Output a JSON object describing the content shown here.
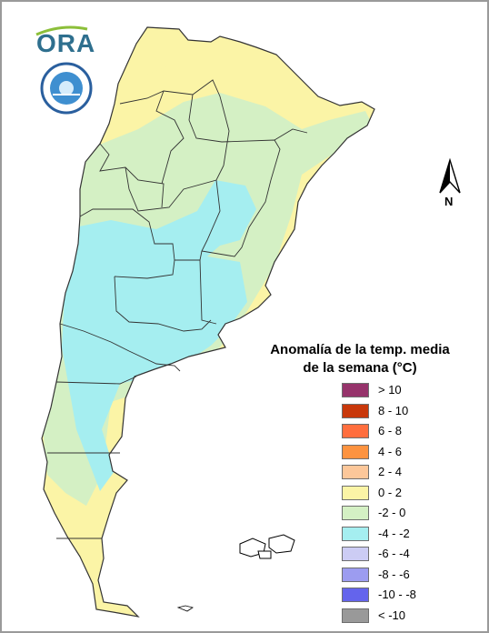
{
  "logo": {
    "brand_text": "ORA"
  },
  "map": {
    "colors": {
      "warm": "#fbf4a6",
      "mild": "#d4f0c4",
      "cool": "#a5eef0",
      "border": "#333333"
    }
  },
  "compass": {
    "north_label": "N"
  },
  "legend": {
    "title_line1": "Anomalía de la temp. media",
    "title_line2": "de la semana (°C)",
    "items": [
      {
        "label": "> 10",
        "color": "#96336b"
      },
      {
        "label": "8 - 10",
        "color": "#c8380b"
      },
      {
        "label": "6 - 8",
        "color": "#ff6e3e"
      },
      {
        "label": "4 - 6",
        "color": "#fd9340"
      },
      {
        "label": "2 - 4",
        "color": "#fcc79a"
      },
      {
        "label": "0 - 2",
        "color": "#fbf4a6"
      },
      {
        "label": "-2 - 0",
        "color": "#d4f0c4"
      },
      {
        "label": "-4 - -2",
        "color": "#a5eef0"
      },
      {
        "label": "-6 - -4",
        "color": "#ccccf4"
      },
      {
        "label": "-8 - -6",
        "color": "#9c9cf0"
      },
      {
        "label": "-10 - -8",
        "color": "#6464ec"
      },
      {
        "label": "< -10",
        "color": "#999999"
      }
    ]
  }
}
